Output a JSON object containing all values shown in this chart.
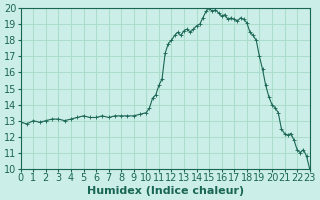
{
  "title": "",
  "xlabel": "Humidex (Indice chaleur)",
  "ylabel": "",
  "bg_color": "#cceee8",
  "grid_color": "#aaddcc",
  "line_color": "#1a6655",
  "marker_color": "#1a6655",
  "xlim": [
    0,
    23
  ],
  "ylim": [
    10,
    20
  ],
  "yticks": [
    10,
    11,
    12,
    13,
    14,
    15,
    16,
    17,
    18,
    19,
    20
  ],
  "xticks": [
    0,
    1,
    2,
    3,
    4,
    5,
    6,
    7,
    8,
    9,
    10,
    11,
    12,
    13,
    14,
    15,
    16,
    17,
    18,
    19,
    20,
    21,
    22,
    23
  ],
  "x": [
    0,
    0.5,
    1,
    1.5,
    2,
    2.5,
    3,
    3.5,
    4,
    4.5,
    5,
    5.5,
    6,
    6.5,
    7,
    7.5,
    8,
    8.5,
    9,
    9.5,
    10,
    10.25,
    10.5,
    10.75,
    11,
    11.25,
    11.5,
    11.75,
    12,
    12.25,
    12.5,
    12.75,
    13,
    13.25,
    13.5,
    13.75,
    14,
    14.25,
    14.5,
    14.75,
    15,
    15.25,
    15.5,
    15.75,
    16,
    16.25,
    16.5,
    16.75,
    17,
    17.25,
    17.5,
    17.75,
    18,
    18.25,
    18.5,
    18.75,
    19,
    19.25,
    19.5,
    19.75,
    20,
    20.25,
    20.5,
    20.75,
    21,
    21.25,
    21.5,
    21.75,
    22,
    22.25,
    22.5,
    22.75,
    23
  ],
  "y": [
    12.9,
    12.8,
    13.0,
    12.9,
    13.0,
    13.1,
    13.1,
    13.0,
    13.1,
    13.2,
    13.3,
    13.2,
    13.2,
    13.3,
    13.2,
    13.3,
    13.3,
    13.3,
    13.3,
    13.4,
    13.5,
    13.8,
    14.4,
    14.6,
    15.2,
    15.6,
    17.2,
    17.8,
    18.0,
    18.3,
    18.5,
    18.3,
    18.6,
    18.7,
    18.5,
    18.7,
    18.9,
    19.0,
    19.4,
    19.8,
    20.0,
    19.8,
    19.9,
    19.7,
    19.5,
    19.6,
    19.3,
    19.4,
    19.3,
    19.2,
    19.4,
    19.3,
    19.1,
    18.5,
    18.3,
    18.0,
    17.0,
    16.2,
    15.2,
    14.5,
    14.0,
    13.8,
    13.5,
    12.5,
    12.2,
    12.1,
    12.2,
    11.8,
    11.2,
    11.0,
    11.2,
    10.8,
    10.0
  ],
  "font_color": "#1a6655",
  "tick_fontsize": 7,
  "label_fontsize": 8
}
